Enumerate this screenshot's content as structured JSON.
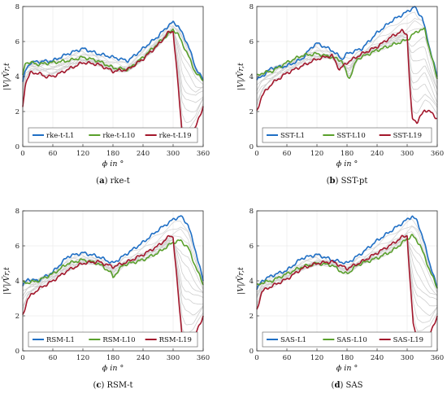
{
  "chart_data": [
    {
      "type": "line",
      "panel_tag": "(a)",
      "caption": "rke-t",
      "xlabel": "ϕ in °",
      "ylabel": "|V|/V̄r,t",
      "xlim": [
        0,
        360
      ],
      "ylim": [
        0,
        8
      ],
      "xticks": [
        0,
        60,
        120,
        180,
        240,
        300,
        360
      ],
      "yticks": [
        0,
        2,
        4,
        6,
        8
      ],
      "grid": true,
      "legend_position": "bottom",
      "series": [
        {
          "name": "rke-t-L1",
          "color": "#1f6fc5",
          "x": [
            0,
            5,
            15,
            30,
            60,
            90,
            120,
            150,
            180,
            210,
            240,
            270,
            290,
            300,
            310,
            330,
            345,
            360
          ],
          "y": [
            3.7,
            4.3,
            4.8,
            4.85,
            4.9,
            5.3,
            5.6,
            5.3,
            5.1,
            4.9,
            5.6,
            6.3,
            6.9,
            7.1,
            6.9,
            5.8,
            4.5,
            3.8
          ]
        },
        {
          "name": "rke-t-L10",
          "color": "#5aa02c",
          "x": [
            0,
            5,
            15,
            30,
            60,
            90,
            120,
            150,
            180,
            210,
            240,
            270,
            290,
            300,
            310,
            330,
            345,
            360
          ],
          "y": [
            4.0,
            4.8,
            4.8,
            4.7,
            4.8,
            4.9,
            5.1,
            4.9,
            4.5,
            4.4,
            5.1,
            5.9,
            6.4,
            6.7,
            6.4,
            5.2,
            4.2,
            3.8
          ]
        },
        {
          "name": "rke-t-L19",
          "color": "#a3172c",
          "x": [
            0,
            5,
            15,
            30,
            45,
            60,
            90,
            120,
            150,
            180,
            210,
            240,
            270,
            290,
            300,
            310,
            318,
            325,
            335,
            345,
            360
          ],
          "y": [
            2.2,
            3.6,
            4.2,
            4.2,
            4.0,
            4.0,
            4.4,
            4.8,
            4.7,
            4.3,
            4.4,
            5.0,
            5.8,
            6.5,
            6.6,
            3.5,
            0.7,
            0.3,
            0.6,
            1.1,
            2.3
          ]
        }
      ]
    },
    {
      "type": "line",
      "panel_tag": "(b)",
      "caption": "SST-pt",
      "xlabel": "ϕ in °",
      "ylabel": "|V|/V̄r,t",
      "xlim": [
        0,
        360
      ],
      "ylim": [
        0,
        8
      ],
      "xticks": [
        0,
        60,
        120,
        180,
        240,
        300,
        360
      ],
      "yticks": [
        0,
        2,
        4,
        6,
        8
      ],
      "grid": true,
      "legend_position": "bottom",
      "series": [
        {
          "name": "SST-L1",
          "color": "#1f6fc5",
          "x": [
            0,
            10,
            30,
            60,
            90,
            110,
            120,
            150,
            170,
            180,
            210,
            240,
            270,
            300,
            315,
            320,
            330,
            345,
            360
          ],
          "y": [
            3.8,
            4.0,
            4.5,
            4.6,
            5.0,
            5.7,
            5.9,
            5.5,
            5.0,
            5.3,
            5.6,
            6.5,
            7.2,
            7.7,
            8.0,
            7.7,
            7.4,
            5.6,
            4.0
          ]
        },
        {
          "name": "SST-L10",
          "color": "#5aa02c",
          "x": [
            0,
            10,
            30,
            60,
            90,
            120,
            150,
            170,
            180,
            185,
            200,
            240,
            270,
            300,
            320,
            335,
            345,
            360
          ],
          "y": [
            4.0,
            4.2,
            4.3,
            4.8,
            5.2,
            5.3,
            5.1,
            4.9,
            4.1,
            3.9,
            5.0,
            5.5,
            5.8,
            6.1,
            6.6,
            6.7,
            5.5,
            3.9
          ]
        },
        {
          "name": "SST-L19",
          "color": "#a3172c",
          "x": [
            0,
            10,
            30,
            60,
            90,
            120,
            150,
            165,
            180,
            210,
            240,
            270,
            290,
            300,
            305,
            310,
            320,
            335,
            345,
            360
          ],
          "y": [
            2.0,
            2.9,
            3.6,
            4.2,
            4.6,
            5.0,
            5.2,
            4.4,
            4.8,
            5.3,
            5.7,
            6.3,
            6.6,
            6.4,
            3.5,
            1.6,
            1.4,
            2.1,
            2.0,
            1.6
          ]
        }
      ]
    },
    {
      "type": "line",
      "panel_tag": "(c)",
      "caption": "RSM-t",
      "xlabel": "ϕ in °",
      "ylabel": "|V|/V̄r,t",
      "xlim": [
        0,
        360
      ],
      "ylim": [
        0,
        8
      ],
      "xticks": [
        0,
        60,
        120,
        180,
        240,
        300,
        360
      ],
      "yticks": [
        0,
        2,
        4,
        6,
        8
      ],
      "grid": true,
      "legend_position": "bottom",
      "series": [
        {
          "name": "RSM-L1",
          "color": "#1f6fc5",
          "x": [
            0,
            10,
            30,
            60,
            90,
            120,
            150,
            180,
            200,
            240,
            270,
            300,
            315,
            330,
            345,
            360
          ],
          "y": [
            3.7,
            4.1,
            4.0,
            4.5,
            5.4,
            5.6,
            5.4,
            5.0,
            5.4,
            6.2,
            6.9,
            7.5,
            7.7,
            7.2,
            5.7,
            4.0
          ]
        },
        {
          "name": "RSM-L10",
          "color": "#5aa02c",
          "x": [
            0,
            10,
            30,
            60,
            90,
            120,
            150,
            175,
            180,
            200,
            240,
            270,
            300,
            315,
            330,
            345,
            360
          ],
          "y": [
            3.9,
            3.9,
            4.0,
            4.4,
            5.0,
            5.2,
            5.0,
            4.5,
            4.2,
            4.9,
            5.2,
            5.6,
            6.2,
            6.3,
            5.9,
            4.8,
            3.8
          ]
        },
        {
          "name": "RSM-L19",
          "color": "#a3172c",
          "x": [
            0,
            10,
            30,
            60,
            90,
            120,
            150,
            180,
            210,
            240,
            270,
            295,
            300,
            310,
            318,
            325,
            340,
            360
          ],
          "y": [
            2.0,
            3.0,
            3.5,
            4.0,
            4.6,
            5.0,
            5.1,
            4.8,
            5.1,
            5.5,
            6.0,
            6.6,
            6.5,
            3.3,
            0.8,
            0.3,
            0.6,
            2.0
          ]
        }
      ]
    },
    {
      "type": "line",
      "panel_tag": "(d)",
      "caption": "SAS",
      "xlabel": "ϕ in °",
      "ylabel": "|V|/V̄r,t",
      "xlim": [
        0,
        360
      ],
      "ylim": [
        0,
        8
      ],
      "xticks": [
        0,
        60,
        120,
        180,
        240,
        300,
        360
      ],
      "yticks": [
        0,
        2,
        4,
        6,
        8
      ],
      "grid": true,
      "legend_position": "bottom",
      "series": [
        {
          "name": "SAS-L1",
          "color": "#1f6fc5",
          "x": [
            0,
            10,
            30,
            60,
            90,
            120,
            150,
            180,
            210,
            240,
            270,
            300,
            310,
            320,
            330,
            345,
            360
          ],
          "y": [
            3.5,
            4.0,
            4.3,
            4.6,
            5.3,
            5.5,
            5.2,
            5.0,
            5.6,
            6.3,
            6.9,
            7.5,
            7.7,
            7.4,
            6.6,
            5.0,
            3.6
          ]
        },
        {
          "name": "SAS-L10",
          "color": "#5aa02c",
          "x": [
            0,
            10,
            30,
            60,
            90,
            120,
            150,
            175,
            185,
            200,
            240,
            270,
            300,
            310,
            325,
            345,
            360
          ],
          "y": [
            3.7,
            3.9,
            4.0,
            4.4,
            4.8,
            5.0,
            4.9,
            4.4,
            4.5,
            4.9,
            5.3,
            5.7,
            6.4,
            6.6,
            6.1,
            4.6,
            3.6
          ]
        },
        {
          "name": "SAS-L19",
          "color": "#a3172c",
          "x": [
            0,
            10,
            30,
            60,
            90,
            120,
            150,
            180,
            210,
            240,
            270,
            290,
            300,
            305,
            312,
            320,
            330,
            345,
            360
          ],
          "y": [
            2.3,
            3.4,
            3.7,
            4.1,
            4.7,
            5.0,
            5.1,
            4.7,
            5.1,
            5.6,
            6.1,
            6.5,
            6.6,
            4.2,
            1.6,
            0.6,
            0.6,
            0.9,
            2.0
          ]
        }
      ]
    }
  ]
}
